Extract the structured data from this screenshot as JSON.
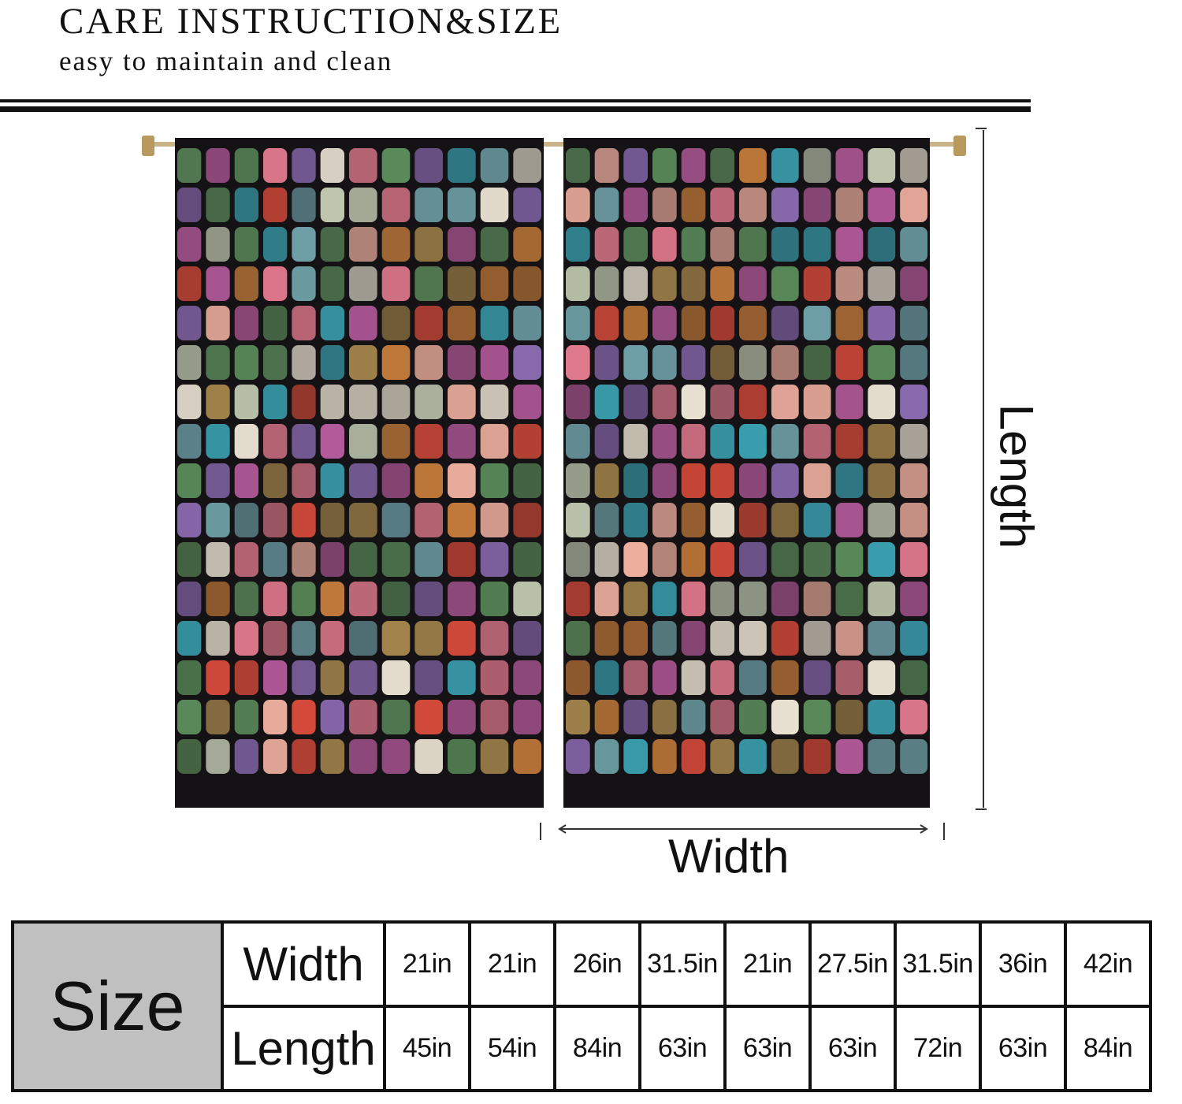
{
  "header": {
    "title": "CARE INSTRUCTION&SIZE",
    "subtitle": "easy to maintain and clean"
  },
  "diagram": {
    "width_label": "Width",
    "length_label": "Length",
    "curtain_colors": [
      "#e27a8e",
      "#b35a9a",
      "#6fa0a8",
      "#e8e0d0",
      "#c27a3a",
      "#5a8a5a",
      "#d44a3a",
      "#8a6ab0",
      "#3aa0b0",
      "#f0b0a0",
      "#a0824a",
      "#c0c8b0"
    ]
  },
  "size_table": {
    "header": "Size",
    "rows": [
      {
        "label": "Width",
        "values": [
          "21in",
          "21in",
          "26in",
          "31.5in",
          "21in",
          "27.5in",
          "31.5in",
          "36in",
          "42in"
        ]
      },
      {
        "label": "Length",
        "values": [
          "45in",
          "54in",
          "84in",
          "63in",
          "63in",
          "63in",
          "72in",
          "63in",
          "84in"
        ]
      }
    ]
  }
}
